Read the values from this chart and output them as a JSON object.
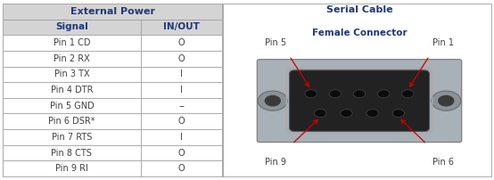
{
  "title_left": "External Power",
  "col_headers": [
    "Signal",
    "IN/OUT"
  ],
  "rows": [
    [
      "Pin 1 CD",
      "O"
    ],
    [
      "Pin 2 RX",
      "O"
    ],
    [
      "Pin 3 TX",
      "I"
    ],
    [
      "Pin 4 DTR",
      "I"
    ],
    [
      "Pin 5 GND",
      "--"
    ],
    [
      "Pin 6 DSR*",
      "O"
    ],
    [
      "Pin 7 RTS",
      "I"
    ],
    [
      "Pin 8 CTS",
      "O"
    ],
    [
      "Pin 9 RI",
      "O"
    ]
  ],
  "title_right": "Serial Cable",
  "subtitle_right": "Female Connector",
  "header_bg": "#d4d4d4",
  "title_bg": "#d4d4d4",
  "header_color": "#1f3878",
  "row_bg_even": "#ffffff",
  "row_bg_odd": "#f0f0f0",
  "border_color": "#999999",
  "text_color": "#404040",
  "arrow_color": "#cc0000",
  "title_fontsize": 8,
  "header_fontsize": 7.5,
  "cell_fontsize": 7,
  "label_fontsize": 7
}
